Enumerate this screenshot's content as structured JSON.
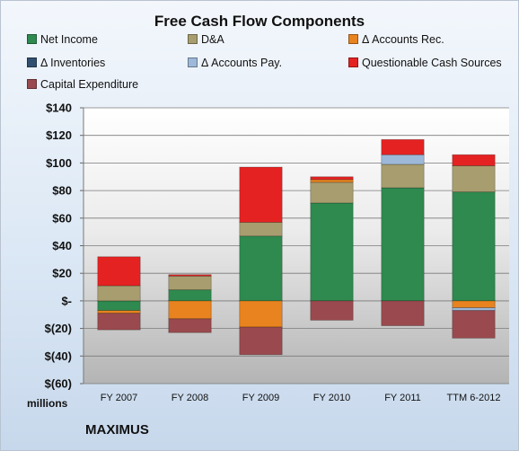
{
  "chart_data": {
    "type": "bar",
    "stacked": true,
    "title": "Free Cash Flow Components",
    "units_label": "millions",
    "company": "MAXIMUS",
    "categories": [
      "FY 2007",
      "FY 2008",
      "FY 2009",
      "FY 2010",
      "FY 2011",
      "TTM 6-2012"
    ],
    "ylim": [
      -60,
      140
    ],
    "yticks": [
      {
        "value": 140,
        "label": "$140"
      },
      {
        "value": 120,
        "label": "$120"
      },
      {
        "value": 100,
        "label": "$100"
      },
      {
        "value": 80,
        "label": "$80"
      },
      {
        "value": 60,
        "label": "$60"
      },
      {
        "value": 40,
        "label": "$40"
      },
      {
        "value": 20,
        "label": "$20"
      },
      {
        "value": 0,
        "label": "$-"
      },
      {
        "value": -20,
        "label": "$(20)"
      },
      {
        "value": -40,
        "label": "$(40)"
      },
      {
        "value": -60,
        "label": "$(60)"
      }
    ],
    "grid": true,
    "legend_position": "top",
    "series": [
      {
        "name": "Net Income",
        "color": "#2e8a4f",
        "values": [
          -7,
          8,
          47,
          71,
          82,
          79
        ]
      },
      {
        "name": "D&A",
        "color": "#a89d6e",
        "values": [
          11,
          10,
          10,
          15,
          17,
          19
        ]
      },
      {
        "name": "Δ Accounts Rec.",
        "color": "#e8831f",
        "values": [
          -2,
          -13,
          -19,
          2,
          0,
          -5
        ]
      },
      {
        "name": "Δ Inventories",
        "color": "#31506f",
        "values": [
          0,
          0,
          0,
          0,
          0,
          0
        ]
      },
      {
        "name": "Δ Accounts Pay.",
        "color": "#9db8d9",
        "values": [
          0,
          0,
          0,
          0,
          7,
          -2
        ]
      },
      {
        "name": "Questionable Cash Sources",
        "color": "#e52222",
        "values": [
          21,
          1,
          40,
          2,
          11,
          8
        ]
      },
      {
        "name": "Capital Expenditure",
        "color": "#9a4a4e",
        "values": [
          -12,
          -10,
          -20,
          -14,
          -18,
          -20
        ]
      }
    ]
  }
}
